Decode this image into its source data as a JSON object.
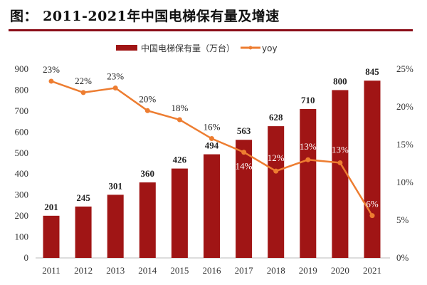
{
  "title": "图：  2011-2021年中国电梯保有量及增速",
  "chart_data": {
    "type": "bar+line",
    "title": "2011-2021年中国电梯保有量及增速",
    "categories": [
      "2011",
      "2012",
      "2013",
      "2014",
      "2015",
      "2016",
      "2017",
      "2018",
      "2019",
      "2020",
      "2021"
    ],
    "series": [
      {
        "name": "中国电梯保有量（万台）",
        "type": "bar",
        "axis": "left",
        "color": "#a01515",
        "values": [
          201,
          245,
          301,
          360,
          426,
          494,
          563,
          628,
          710,
          800,
          845
        ]
      },
      {
        "name": "yoy",
        "type": "line",
        "axis": "right",
        "color": "#ed7d31",
        "values": [
          23.4,
          21.9,
          22.5,
          19.5,
          18.3,
          15.8,
          14.0,
          11.5,
          13.0,
          12.6,
          5.6
        ],
        "labels": [
          "23%",
          "22%",
          "23%",
          "20%",
          "18%",
          "16%",
          "14%",
          "12%",
          "13%",
          "13%",
          "6%"
        ]
      }
    ],
    "ylim_left": [
      0,
      900
    ],
    "yticks_left": [
      "0",
      "100",
      "200",
      "300",
      "400",
      "500",
      "600",
      "700",
      "800",
      "900"
    ],
    "ylim_right": [
      0,
      25
    ],
    "yticks_right": [
      "0%",
      "5%",
      "10%",
      "15%",
      "20%",
      "25%"
    ],
    "legend": "top",
    "grid": false
  }
}
